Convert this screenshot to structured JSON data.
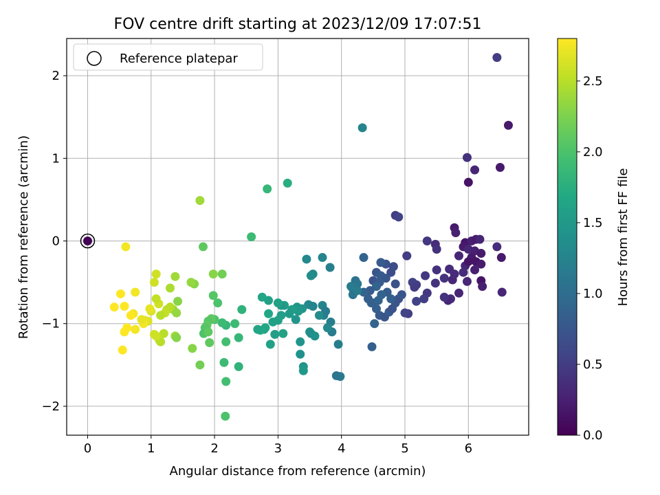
{
  "chart_data": {
    "type": "scatter",
    "title": "FOV centre drift starting at 2023/12/09 17:07:51",
    "xlabel": "Angular distance from reference (arcmin)",
    "ylabel": "Rotation from reference (arcmin)",
    "xlim": [
      -0.33,
      6.95
    ],
    "ylim": [
      -2.35,
      2.45
    ],
    "xticks": [
      0,
      1,
      2,
      3,
      4,
      5,
      6
    ],
    "xtick_labels": [
      "0",
      "1",
      "2",
      "3",
      "4",
      "5",
      "6"
    ],
    "yticks": [
      -2,
      -1,
      0,
      1,
      2
    ],
    "ytick_labels": [
      "−2",
      "−1",
      "0",
      "1",
      "2"
    ],
    "grid": true,
    "legend": {
      "position": "top-left",
      "entries": [
        "Reference platepar"
      ]
    },
    "colorbar": {
      "label": "Hours from first FF file",
      "range": [
        0.0,
        2.8
      ],
      "ticks": [
        0.0,
        0.5,
        1.0,
        1.5,
        2.0,
        2.5
      ],
      "tick_labels": [
        "0.0",
        "0.5",
        "1.0",
        "1.5",
        "2.0",
        "2.5"
      ],
      "colormap": "viridis"
    },
    "reference_point": {
      "x": 0,
      "y": 0,
      "name": "Reference platepar"
    },
    "series": [
      {
        "columns": [
          "x",
          "y",
          "hours"
        ],
        "points": [
          [
            0.0,
            0.0,
            0.02
          ],
          [
            6.45,
            2.22,
            0.5
          ],
          [
            6.63,
            1.4,
            0.2
          ],
          [
            6.5,
            0.89,
            0.2
          ],
          [
            6.1,
            0.86,
            0.3
          ],
          [
            5.98,
            1.01,
            0.4
          ],
          [
            6.0,
            0.71,
            0.15
          ],
          [
            5.78,
            0.16,
            0.2
          ],
          [
            5.8,
            0.1,
            0.25
          ],
          [
            5.95,
            -0.02,
            0.15
          ],
          [
            6.05,
            0.0,
            0.25
          ],
          [
            6.12,
            0.02,
            0.2
          ],
          [
            6.18,
            0.02,
            0.3
          ],
          [
            5.92,
            -0.07,
            0.2
          ],
          [
            6.0,
            -0.1,
            0.3
          ],
          [
            6.1,
            -0.12,
            0.25
          ],
          [
            6.2,
            -0.15,
            0.2
          ],
          [
            5.85,
            -0.18,
            0.3
          ],
          [
            6.05,
            -0.2,
            0.2
          ],
          [
            6.12,
            -0.25,
            0.15
          ],
          [
            6.2,
            -0.28,
            0.2
          ],
          [
            5.95,
            -0.3,
            0.3
          ],
          [
            6.0,
            -0.25,
            0.15
          ],
          [
            6.1,
            -0.35,
            0.25
          ],
          [
            6.45,
            -0.07,
            0.35
          ],
          [
            6.52,
            -0.2,
            0.2
          ],
          [
            6.2,
            -0.48,
            0.15
          ],
          [
            6.22,
            -0.55,
            0.25
          ],
          [
            6.53,
            -0.62,
            0.3
          ],
          [
            5.92,
            -0.38,
            0.35
          ],
          [
            5.98,
            -0.49,
            0.3
          ],
          [
            5.7,
            -0.34,
            0.35
          ],
          [
            5.75,
            -0.47,
            0.3
          ],
          [
            5.78,
            -0.4,
            0.35
          ],
          [
            5.62,
            -0.45,
            0.4
          ],
          [
            5.85,
            -0.63,
            0.3
          ],
          [
            5.72,
            -0.7,
            0.35
          ],
          [
            5.68,
            -0.72,
            0.3
          ],
          [
            5.62,
            -0.68,
            0.4
          ],
          [
            5.5,
            -0.35,
            0.4
          ],
          [
            5.48,
            -0.51,
            0.4
          ],
          [
            5.35,
            0.0,
            0.45
          ],
          [
            5.48,
            -0.04,
            0.35
          ],
          [
            5.5,
            -0.1,
            0.4
          ],
          [
            5.32,
            -0.42,
            0.45
          ],
          [
            5.35,
            -0.63,
            0.45
          ],
          [
            5.3,
            -0.7,
            0.5
          ],
          [
            5.18,
            -0.53,
            0.5
          ],
          [
            5.12,
            -0.5,
            0.55
          ],
          [
            5.15,
            -0.56,
            0.5
          ],
          [
            5.18,
            -0.73,
            0.55
          ],
          [
            5.05,
            -0.88,
            0.5
          ],
          [
            5.0,
            -0.87,
            0.55
          ],
          [
            5.03,
            -0.18,
            0.5
          ],
          [
            4.85,
            0.31,
            0.5
          ],
          [
            4.9,
            0.29,
            0.55
          ],
          [
            4.7,
            -0.28,
            0.7
          ],
          [
            4.78,
            -0.38,
            0.65
          ],
          [
            4.82,
            -0.31,
            0.65
          ],
          [
            4.62,
            -0.26,
            0.8
          ],
          [
            4.55,
            -0.38,
            0.75
          ],
          [
            4.5,
            -0.48,
            0.7
          ],
          [
            4.62,
            -0.42,
            0.8
          ],
          [
            4.7,
            -0.45,
            0.75
          ],
          [
            4.85,
            -0.52,
            0.7
          ],
          [
            4.6,
            -0.5,
            0.8
          ],
          [
            4.55,
            -0.55,
            0.9
          ],
          [
            4.45,
            -0.6,
            0.8
          ],
          [
            4.35,
            -0.62,
            0.9
          ],
          [
            4.42,
            -0.7,
            0.85
          ],
          [
            4.5,
            -0.75,
            0.75
          ],
          [
            4.55,
            -0.82,
            0.85
          ],
          [
            4.6,
            -0.9,
            0.8
          ],
          [
            4.68,
            -0.92,
            0.75
          ],
          [
            4.75,
            -0.86,
            0.8
          ],
          [
            4.8,
            -0.82,
            0.7
          ],
          [
            4.85,
            -0.75,
            0.75
          ],
          [
            4.9,
            -0.7,
            0.7
          ],
          [
            4.95,
            -0.65,
            0.75
          ],
          [
            4.72,
            -0.62,
            0.8
          ],
          [
            4.78,
            -0.7,
            0.85
          ],
          [
            4.52,
            -1.0,
            0.9
          ],
          [
            4.48,
            -1.28,
            0.85
          ],
          [
            4.63,
            -0.65,
            0.9
          ],
          [
            4.47,
            -0.75,
            0.85
          ],
          [
            4.58,
            -0.72,
            0.9
          ],
          [
            4.35,
            -0.2,
            0.9
          ],
          [
            4.33,
            1.37,
            1.25
          ],
          [
            4.22,
            -0.48,
            1.05
          ],
          [
            4.25,
            -0.52,
            1.1
          ],
          [
            4.18,
            -0.58,
            1.05
          ],
          [
            4.2,
            -0.62,
            1.1
          ],
          [
            4.15,
            -0.55,
            1.15
          ],
          [
            4.18,
            -0.65,
            1.1
          ],
          [
            4.25,
            -0.6,
            1.15
          ],
          [
            3.98,
            -1.64,
            1.15
          ],
          [
            3.92,
            -1.63,
            1.1
          ],
          [
            3.95,
            -1.25,
            1.2
          ],
          [
            3.85,
            -1.1,
            1.15
          ],
          [
            3.83,
            -0.98,
            1.2
          ],
          [
            3.78,
            -1.05,
            1.3
          ],
          [
            3.72,
            -0.9,
            1.2
          ],
          [
            3.7,
            -0.78,
            1.25
          ],
          [
            3.75,
            -0.85,
            1.15
          ],
          [
            3.82,
            -0.32,
            1.2
          ],
          [
            3.7,
            -0.2,
            1.25
          ],
          [
            3.55,
            -0.4,
            1.3
          ],
          [
            3.52,
            -0.42,
            1.35
          ],
          [
            3.45,
            -0.22,
            1.3
          ],
          [
            3.48,
            -0.77,
            1.3
          ],
          [
            3.55,
            -0.79,
            1.25
          ],
          [
            3.65,
            -0.9,
            1.35
          ],
          [
            3.5,
            -1.1,
            1.4
          ],
          [
            3.52,
            -1.12,
            1.35
          ],
          [
            3.58,
            -1.15,
            1.4
          ],
          [
            3.35,
            -1.22,
            1.45
          ],
          [
            3.35,
            -1.37,
            1.4
          ],
          [
            3.4,
            -1.52,
            1.45
          ],
          [
            3.4,
            -1.57,
            1.5
          ],
          [
            3.38,
            -0.82,
            1.45
          ],
          [
            3.3,
            -0.8,
            1.45
          ],
          [
            3.32,
            -0.85,
            1.5
          ],
          [
            3.28,
            -0.95,
            1.45
          ],
          [
            3.22,
            -0.83,
            1.55
          ],
          [
            3.18,
            -0.88,
            1.5
          ],
          [
            3.1,
            -0.78,
            1.55
          ],
          [
            3.05,
            -0.78,
            1.5
          ],
          [
            3.0,
            -0.75,
            1.6
          ],
          [
            3.05,
            -0.9,
            1.55
          ],
          [
            3.0,
            -0.96,
            1.6
          ],
          [
            2.92,
            -0.98,
            1.6
          ],
          [
            2.85,
            -0.72,
            1.6
          ],
          [
            2.75,
            -0.68,
            1.65
          ],
          [
            2.85,
            -0.88,
            1.65
          ],
          [
            2.8,
            -1.05,
            1.7
          ],
          [
            2.78,
            -1.07,
            1.65
          ],
          [
            2.72,
            -1.08,
            1.7
          ],
          [
            2.68,
            -1.07,
            1.65
          ],
          [
            2.88,
            -1.25,
            1.6
          ],
          [
            2.95,
            -1.13,
            1.55
          ],
          [
            3.08,
            -1.12,
            1.6
          ],
          [
            3.15,
            0.7,
            1.75
          ],
          [
            2.83,
            0.63,
            1.85
          ],
          [
            2.58,
            0.05,
            1.9
          ],
          [
            2.43,
            -0.83,
            1.8
          ],
          [
            2.38,
            -1.17,
            1.85
          ],
          [
            2.38,
            -1.52,
            1.8
          ],
          [
            2.32,
            -1.0,
            1.9
          ],
          [
            2.18,
            -1.02,
            1.85
          ],
          [
            2.12,
            -0.99,
            1.9
          ],
          [
            2.18,
            -1.22,
            1.95
          ],
          [
            2.15,
            -1.47,
            1.9
          ],
          [
            2.18,
            -1.7,
            1.95
          ],
          [
            2.17,
            -2.12,
            2.0
          ],
          [
            2.12,
            -0.4,
            2.2
          ],
          [
            2.05,
            -0.75,
            2.0
          ],
          [
            1.98,
            -0.66,
            2.05
          ],
          [
            2.0,
            -0.95,
            2.0
          ],
          [
            1.95,
            -0.94,
            2.1
          ],
          [
            1.9,
            -0.97,
            2.05
          ],
          [
            1.88,
            -1.02,
            2.1
          ],
          [
            1.85,
            -1.05,
            2.05
          ],
          [
            1.83,
            -1.12,
            2.0
          ],
          [
            1.9,
            -1.1,
            2.1
          ],
          [
            1.92,
            -1.23,
            2.1
          ],
          [
            1.82,
            -0.07,
            2.1
          ],
          [
            1.77,
            0.49,
            2.4
          ],
          [
            1.77,
            -1.5,
            2.2
          ],
          [
            1.65,
            -1.3,
            2.3
          ],
          [
            1.68,
            -0.52,
            2.3
          ],
          [
            1.63,
            -0.5,
            2.35
          ],
          [
            1.98,
            -0.4,
            2.3
          ],
          [
            1.42,
            -0.73,
            2.3
          ],
          [
            1.38,
            -0.43,
            2.4
          ],
          [
            1.35,
            -0.83,
            2.4
          ],
          [
            1.4,
            -0.87,
            2.35
          ],
          [
            1.38,
            -1.15,
            2.4
          ],
          [
            1.4,
            -1.17,
            2.3
          ],
          [
            1.3,
            -0.57,
            2.45
          ],
          [
            1.3,
            -0.8,
            2.5
          ],
          [
            1.25,
            -0.83,
            2.5
          ],
          [
            1.22,
            -0.87,
            2.55
          ],
          [
            1.15,
            -0.9,
            2.5
          ],
          [
            1.12,
            -0.76,
            2.6
          ],
          [
            1.08,
            -0.7,
            2.55
          ],
          [
            1.08,
            -0.4,
            2.6
          ],
          [
            1.05,
            -0.5,
            2.6
          ],
          [
            1.2,
            -1.12,
            2.5
          ],
          [
            1.13,
            -1.2,
            2.55
          ],
          [
            1.15,
            -1.22,
            2.5
          ],
          [
            1.08,
            -1.15,
            2.6
          ],
          [
            1.0,
            -0.85,
            2.65
          ],
          [
            0.98,
            -0.82,
            2.7
          ],
          [
            0.95,
            -0.97,
            2.65
          ],
          [
            0.9,
            -0.96,
            2.7
          ],
          [
            0.88,
            -1.0,
            2.75
          ],
          [
            0.85,
            -0.95,
            2.7
          ],
          [
            0.75,
            -0.62,
            2.75
          ],
          [
            0.72,
            -0.88,
            2.75
          ],
          [
            0.68,
            -0.9,
            2.8
          ],
          [
            0.75,
            -1.07,
            2.75
          ],
          [
            0.62,
            -1.05,
            2.8
          ],
          [
            0.58,
            -1.1,
            2.8
          ],
          [
            0.55,
            -1.32,
            2.8
          ],
          [
            0.52,
            -0.64,
            2.8
          ],
          [
            0.58,
            -0.79,
            2.8
          ],
          [
            0.42,
            -0.8,
            2.8
          ],
          [
            0.6,
            -0.07,
            2.75
          ],
          [
            1.05,
            -1.13,
            2.6
          ]
        ]
      }
    ]
  }
}
